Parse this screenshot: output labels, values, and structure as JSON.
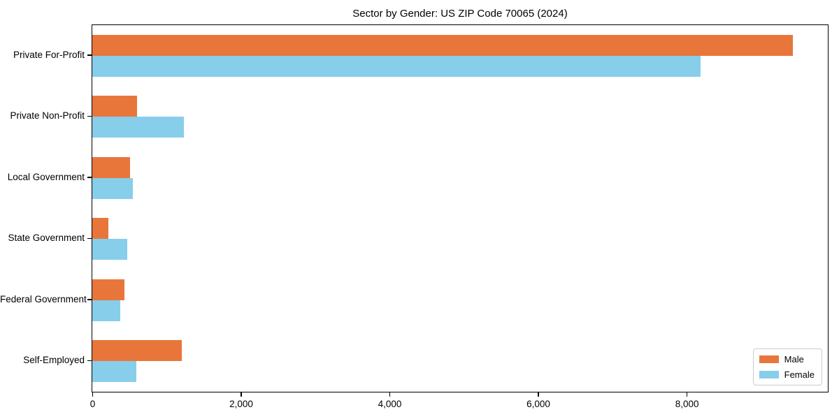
{
  "title": "Sector by Gender: US ZIP Code 70065 (2024)",
  "colors": {
    "male": "#e8763b",
    "female": "#87ceeb",
    "axis": "#000000",
    "legend_border": "#cccccc",
    "background": "#ffffff"
  },
  "legend": {
    "position": "lower right",
    "entries": [
      {
        "label": "Male",
        "color": "#e8763b"
      },
      {
        "label": "Female",
        "color": "#87ceeb"
      }
    ]
  },
  "chart_data": {
    "type": "bar",
    "orientation": "horizontal",
    "title": "Sector by Gender: US ZIP Code 70065 (2024)",
    "categories": [
      "Private For-Profit",
      "Private Non-Profit",
      "Local Government",
      "State Government",
      "Federal Government",
      "Self-Employed"
    ],
    "series": [
      {
        "name": "Male",
        "color": "#e8763b",
        "values": [
          9430,
          600,
          510,
          220,
          430,
          1200
        ]
      },
      {
        "name": "Female",
        "color": "#87ceeb",
        "values": [
          8190,
          1230,
          550,
          470,
          380,
          590
        ]
      }
    ],
    "xlabel": "",
    "ylabel": "",
    "xlim": [
      0,
      9900
    ],
    "x_ticks": [
      0,
      2000,
      4000,
      6000,
      8000
    ],
    "x_tick_labels": [
      "0",
      "2,000",
      "4,000",
      "6,000",
      "8,000"
    ],
    "grid": false,
    "legend_position": "lower right"
  }
}
